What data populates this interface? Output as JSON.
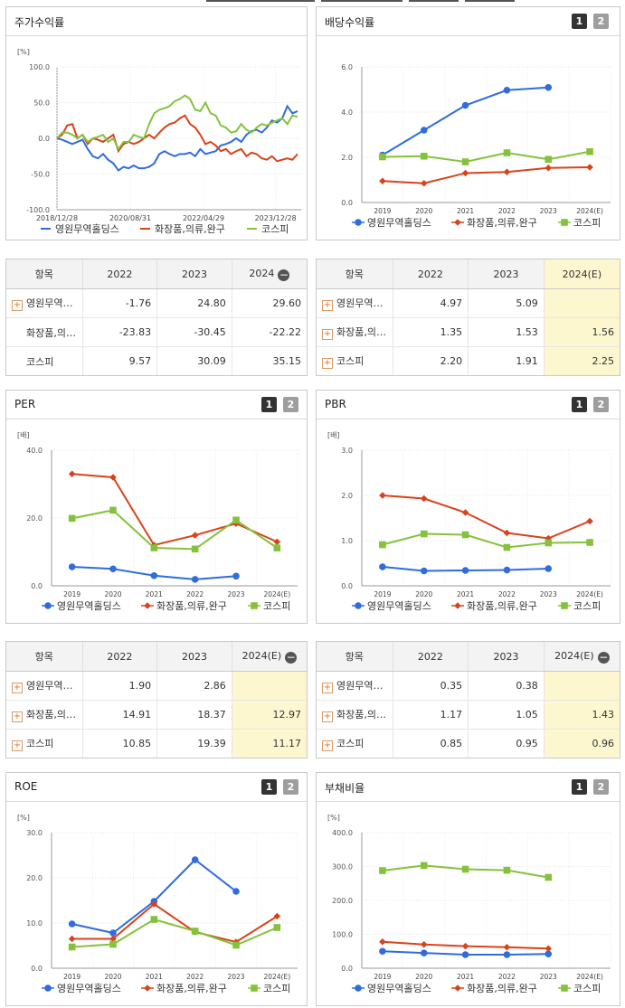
{
  "colors": {
    "company": "#2e6cdf",
    "industry": "#d8431c",
    "kospi": "#85c23c",
    "highlight": "#fdf7d0"
  },
  "legend": {
    "company": "영원무역홀딩스",
    "industry": "화장품,의류,완구",
    "kospi": "코스피"
  },
  "buttons": {
    "one": "1",
    "two": "2"
  },
  "panels": {
    "stock": {
      "title": "주가수익률"
    },
    "dividend": {
      "title": "배당수익률"
    },
    "per": {
      "title": "PER"
    },
    "pbr": {
      "title": "PBR"
    },
    "roe": {
      "title": "ROE"
    },
    "debt": {
      "title": "부채비율"
    }
  },
  "tables": {
    "stock": {
      "headers": [
        "항목",
        "2022",
        "2023",
        "2024"
      ],
      "rows": [
        {
          "name": "영원무역…",
          "plus": true,
          "values": [
            "-1.76",
            "24.80",
            "29.60"
          ]
        },
        {
          "name": "화장품,의…",
          "plus": false,
          "values": [
            "-23.83",
            "-30.45",
            "-22.22"
          ]
        },
        {
          "name": "코스피",
          "plus": false,
          "values": [
            "9.57",
            "30.09",
            "35.15"
          ]
        }
      ]
    },
    "dividend": {
      "headers": [
        "항목",
        "2022",
        "2023",
        "2024(E)"
      ],
      "rows": [
        {
          "name": "영원무역…",
          "plus": true,
          "values": [
            "4.97",
            "5.09",
            ""
          ]
        },
        {
          "name": "화장품,의…",
          "plus": true,
          "values": [
            "1.35",
            "1.53",
            "1.56"
          ]
        },
        {
          "name": "코스피",
          "plus": true,
          "values": [
            "2.20",
            "1.91",
            "2.25"
          ]
        }
      ]
    },
    "per": {
      "headers": [
        "항목",
        "2022",
        "2023",
        "2024(E)"
      ],
      "rows": [
        {
          "name": "영원무역…",
          "plus": true,
          "values": [
            "1.90",
            "2.86",
            ""
          ]
        },
        {
          "name": "화장품,의…",
          "plus": true,
          "values": [
            "14.91",
            "18.37",
            "12.97"
          ]
        },
        {
          "name": "코스피",
          "plus": true,
          "values": [
            "10.85",
            "19.39",
            "11.17"
          ]
        }
      ]
    },
    "pbr": {
      "headers": [
        "항목",
        "2022",
        "2023",
        "2024(E)"
      ],
      "rows": [
        {
          "name": "영원무역…",
          "plus": true,
          "values": [
            "0.35",
            "0.38",
            ""
          ]
        },
        {
          "name": "화장품,의…",
          "plus": true,
          "values": [
            "1.17",
            "1.05",
            "1.43"
          ]
        },
        {
          "name": "코스피",
          "plus": true,
          "values": [
            "0.85",
            "0.95",
            "0.96"
          ]
        }
      ]
    }
  },
  "chart_data": [
    {
      "id": "stock",
      "type": "line",
      "title": "주가수익률",
      "unit": "[%]",
      "ylim": [
        -100,
        100
      ],
      "yticks": [
        "100.0",
        "50.0",
        "0.0",
        "-50.0",
        "-100.0"
      ],
      "xticks": [
        "2018/12/28",
        "2020/08/31",
        "2022/04/29",
        "2023/12/28"
      ],
      "x_range": [
        "2018/12/28",
        "2024/06"
      ],
      "series": [
        {
          "name": "영원무역홀딩스",
          "key": "company",
          "values": [
            0,
            -2,
            -5,
            -8,
            -5,
            -2,
            -15,
            -25,
            -28,
            -22,
            -30,
            -35,
            -45,
            -40,
            -42,
            -38,
            -42,
            -42,
            -40,
            -35,
            -22,
            -18,
            -22,
            -25,
            -22,
            -22,
            -20,
            -25,
            -15,
            -22,
            -20,
            -18,
            -10,
            -8,
            -5,
            0,
            -5,
            5,
            10,
            12,
            8,
            15,
            25,
            22,
            28,
            45,
            35,
            38
          ]
        },
        {
          "name": "화장품,의류,완구",
          "key": "industry",
          "values": [
            0,
            5,
            18,
            20,
            0,
            5,
            -8,
            0,
            -2,
            -5,
            0,
            5,
            -18,
            -8,
            -5,
            -8,
            -5,
            0,
            5,
            0,
            8,
            15,
            20,
            22,
            28,
            32,
            20,
            15,
            5,
            -8,
            -5,
            -10,
            -18,
            -15,
            -22,
            -18,
            -15,
            -25,
            -20,
            -22,
            -28,
            -30,
            -25,
            -32,
            -30,
            -28,
            -30,
            -22
          ]
        },
        {
          "name": "코스피",
          "key": "kospi",
          "values": [
            0,
            8,
            8,
            5,
            0,
            5,
            -5,
            0,
            2,
            5,
            -5,
            0,
            -15,
            -5,
            -5,
            5,
            2,
            0,
            20,
            35,
            40,
            42,
            45,
            52,
            55,
            60,
            55,
            40,
            38,
            50,
            35,
            32,
            18,
            15,
            8,
            10,
            20,
            12,
            8,
            15,
            20,
            18,
            22,
            25,
            28,
            20,
            32,
            30
          ]
        }
      ]
    },
    {
      "id": "dividend",
      "type": "line",
      "title": "배당수익률",
      "unit": "",
      "ylim": [
        0,
        6
      ],
      "yticks": [
        "6.0",
        "4.0",
        "2.0",
        "0.0"
      ],
      "categories": [
        "2019",
        "2020",
        "2021",
        "2022",
        "2023",
        "2024(E)"
      ],
      "series": [
        {
          "name": "영원무역홀딩스",
          "key": "company",
          "marker": "circle",
          "values": [
            2.1,
            3.2,
            4.3,
            4.97,
            5.09,
            null
          ]
        },
        {
          "name": "화장품,의류,완구",
          "key": "industry",
          "marker": "diamond",
          "values": [
            0.95,
            0.85,
            1.3,
            1.35,
            1.53,
            1.56
          ]
        },
        {
          "name": "코스피",
          "key": "kospi",
          "marker": "square",
          "values": [
            2.02,
            2.05,
            1.8,
            2.2,
            1.91,
            2.25
          ]
        }
      ]
    },
    {
      "id": "per",
      "type": "line",
      "title": "PER",
      "unit": "[배]",
      "ylim": [
        0,
        40
      ],
      "yticks": [
        "40.0",
        "20.0",
        "0.0"
      ],
      "categories": [
        "2019",
        "2020",
        "2021",
        "2022",
        "2023",
        "2024(E)"
      ],
      "series": [
        {
          "name": "영원무역홀딩스",
          "key": "company",
          "marker": "circle",
          "values": [
            5.6,
            5.0,
            3.0,
            1.9,
            2.86,
            null
          ]
        },
        {
          "name": "화장품,의류,완구",
          "key": "industry",
          "marker": "diamond",
          "values": [
            33.0,
            32.0,
            12.0,
            14.91,
            18.37,
            12.97
          ]
        },
        {
          "name": "코스피",
          "key": "kospi",
          "marker": "square",
          "values": [
            19.9,
            22.3,
            11.2,
            10.85,
            19.39,
            11.17
          ]
        }
      ]
    },
    {
      "id": "pbr",
      "type": "line",
      "title": "PBR",
      "unit": "[배]",
      "ylim": [
        0,
        3
      ],
      "yticks": [
        "3.0",
        "2.0",
        "1.0",
        "0.0"
      ],
      "categories": [
        "2019",
        "2020",
        "2021",
        "2022",
        "2023",
        "2024(E)"
      ],
      "series": [
        {
          "name": "영원무역홀딩스",
          "key": "company",
          "marker": "circle",
          "values": [
            0.42,
            0.33,
            0.34,
            0.35,
            0.38,
            null
          ]
        },
        {
          "name": "화장품,의류,완구",
          "key": "industry",
          "marker": "diamond",
          "values": [
            2.0,
            1.93,
            1.62,
            1.17,
            1.05,
            1.43
          ]
        },
        {
          "name": "코스피",
          "key": "kospi",
          "marker": "square",
          "values": [
            0.91,
            1.15,
            1.13,
            0.85,
            0.95,
            0.96
          ]
        }
      ]
    },
    {
      "id": "roe",
      "type": "line",
      "title": "ROE",
      "unit": "[%]",
      "ylim": [
        0,
        30
      ],
      "yticks": [
        "30.0",
        "20.0",
        "10.0",
        "0.0"
      ],
      "categories": [
        "2019",
        "2020",
        "2021",
        "2022",
        "2023",
        "2024(E)"
      ],
      "series": [
        {
          "name": "영원무역홀딩스",
          "key": "company",
          "marker": "circle",
          "values": [
            9.8,
            7.8,
            14.8,
            24.0,
            17.0,
            null
          ]
        },
        {
          "name": "화장품,의류,완구",
          "key": "industry",
          "marker": "diamond",
          "values": [
            6.5,
            6.5,
            14.2,
            8.0,
            5.8,
            11.5
          ]
        },
        {
          "name": "코스피",
          "key": "kospi",
          "marker": "square",
          "values": [
            4.7,
            5.3,
            10.8,
            8.2,
            5.1,
            9.0
          ]
        }
      ]
    },
    {
      "id": "debt",
      "type": "line",
      "title": "부채비율",
      "unit": "[%]",
      "ylim": [
        0,
        400
      ],
      "yticks": [
        "400.0",
        "300.0",
        "200.0",
        "100.0",
        "0.0"
      ],
      "categories": [
        "2019",
        "2020",
        "2021",
        "2022",
        "2023",
        "2024(E)"
      ],
      "series": [
        {
          "name": "영원무역홀딩스",
          "key": "company",
          "marker": "circle",
          "values": [
            50,
            45,
            40,
            40,
            42,
            null
          ]
        },
        {
          "name": "화장품,의류,완구",
          "key": "industry",
          "marker": "diamond",
          "values": [
            78,
            70,
            65,
            62,
            58,
            null
          ]
        },
        {
          "name": "코스피",
          "key": "kospi",
          "marker": "square",
          "values": [
            288,
            303,
            292,
            289,
            268,
            null
          ]
        }
      ]
    }
  ]
}
